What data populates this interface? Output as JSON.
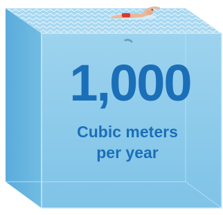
{
  "amount": "1,000",
  "unit_line_1": "Cubic meters",
  "unit_line_2": "per year"
}
